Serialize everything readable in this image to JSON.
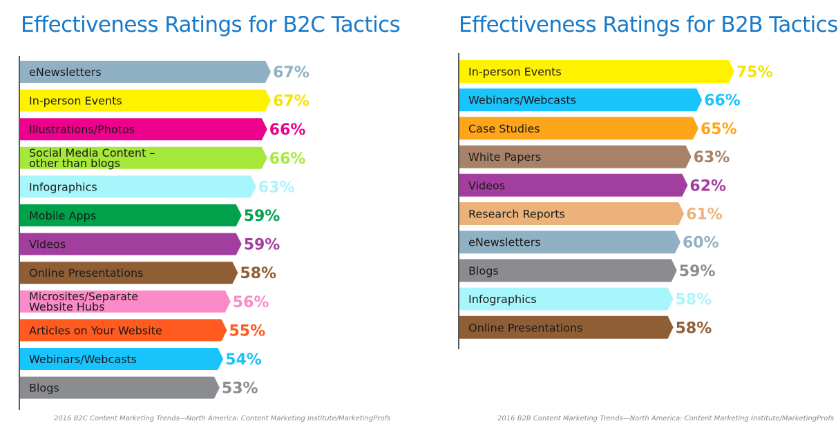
{
  "chart_data": [
    {
      "type": "bar",
      "orientation": "horizontal",
      "title": "Effectiveness Ratings for B2C Tactics",
      "source": "2016 B2C Content Marketing Trends—North America: Content Marketing Institute/MarketingProfs",
      "value_suffix": "%",
      "categories": [
        [
          "eNewsletters"
        ],
        [
          "In-person Events"
        ],
        [
          "Illustrations/Photos"
        ],
        [
          "Social Media Content –",
          "other than blogs"
        ],
        [
          "Infographics"
        ],
        [
          "Mobile Apps"
        ],
        [
          "Videos"
        ],
        [
          "Online Presentations"
        ],
        [
          "Microsites/Separate",
          "Website Hubs"
        ],
        [
          "Articles on Your Website"
        ],
        [
          "Webinars/Webcasts"
        ],
        [
          "Blogs"
        ]
      ],
      "values": [
        67,
        67,
        66,
        66,
        63,
        59,
        59,
        58,
        56,
        55,
        54,
        53
      ],
      "colors": [
        "#8fb1c3",
        "#fff200",
        "#ec008c",
        "#a6e83a",
        "#a7f6fb",
        "#00a14b",
        "#a23e9e",
        "#8f5e35",
        "#fb8bc8",
        "#ff5a1f",
        "#19c3fb",
        "#8a8c8f"
      ],
      "value_colors": [
        "#8fb1c3",
        "#f5e400",
        "#ec008c",
        "#a6e83a",
        "#a7f6fb",
        "#00a14b",
        "#a23e9e",
        "#8f5e35",
        "#fb8bc8",
        "#ff5a1f",
        "#19c3fb",
        "#8a8c8f"
      ]
    },
    {
      "type": "bar",
      "orientation": "horizontal",
      "title": "Effectiveness Ratings for B2B Tactics",
      "source": "2016 B2B Content Marketing Trends—North America: Content Marketing Institute/MarketingProfs",
      "value_suffix": "%",
      "categories": [
        [
          "In-person Events"
        ],
        [
          "Webinars/Webcasts"
        ],
        [
          "Case Studies"
        ],
        [
          "White Papers"
        ],
        [
          "Videos"
        ],
        [
          "Research Reports"
        ],
        [
          "eNewsletters"
        ],
        [
          "Blogs"
        ],
        [
          "Infographics"
        ],
        [
          "Online Presentations"
        ]
      ],
      "values": [
        75,
        66,
        65,
        63,
        62,
        61,
        60,
        59,
        58,
        58
      ],
      "colors": [
        "#fff200",
        "#19c3fb",
        "#ffa51a",
        "#a88268",
        "#a23e9e",
        "#ebb37a",
        "#8fb1c3",
        "#8a8c8f",
        "#a7f6fb",
        "#8f5e35"
      ],
      "value_colors": [
        "#f5e400",
        "#19c3fb",
        "#ffa51a",
        "#a88268",
        "#a23e9e",
        "#ebb37a",
        "#8fb1c3",
        "#8a8c8f",
        "#a7f6fb",
        "#8f5e35"
      ]
    }
  ]
}
